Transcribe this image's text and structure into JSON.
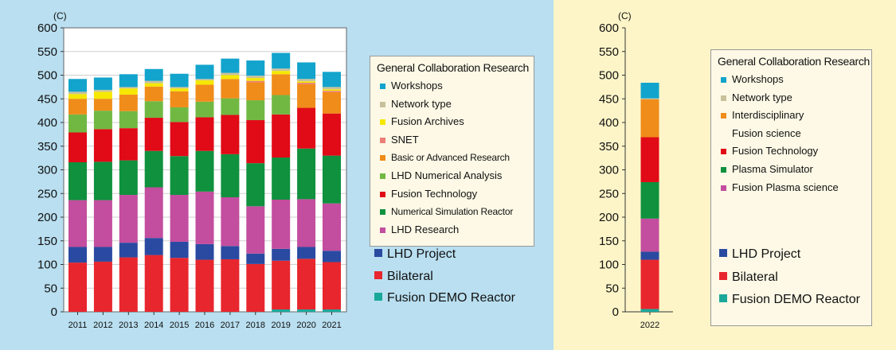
{
  "chart_data": [
    {
      "type": "bar",
      "stacked": true,
      "unit_label": "(C)",
      "ylim": [
        0,
        600
      ],
      "yticks": [
        0,
        50,
        100,
        150,
        200,
        250,
        300,
        350,
        400,
        450,
        500,
        550,
        600
      ],
      "grid": true,
      "categories": [
        "2011",
        "2012",
        "2013",
        "2014",
        "2015",
        "2016",
        "2017",
        "2018",
        "2019",
        "2020",
        "2021"
      ],
      "legend_title": "General Collaboration Research",
      "series": [
        {
          "name": "Fusion DEMO Reactor",
          "color": "#1aa89a",
          "values": [
            0,
            0,
            0,
            0,
            0,
            0,
            0,
            0,
            5,
            5,
            5
          ]
        },
        {
          "name": "Bilateral",
          "color": "#e8262d",
          "values": [
            104,
            106,
            115,
            120,
            114,
            110,
            111,
            101,
            103,
            107,
            100
          ]
        },
        {
          "name": "LHD Project",
          "color": "#2a4aa1",
          "values": [
            33,
            31,
            31,
            36,
            34,
            33,
            28,
            22,
            25,
            25,
            24
          ]
        },
        {
          "name": "LHD Research",
          "color": "#c34d9e",
          "values": [
            99,
            99,
            101,
            107,
            99,
            111,
            103,
            100,
            104,
            101,
            100
          ]
        },
        {
          "name": "Numerical Simulation Reactor",
          "color": "#0f913e",
          "values": [
            80,
            81,
            73,
            77,
            82,
            86,
            91,
            91,
            89,
            107,
            101
          ]
        },
        {
          "name": "Fusion Technology",
          "color": "#e10a17",
          "values": [
            63,
            69,
            68,
            70,
            72,
            71,
            83,
            91,
            91,
            86,
            89
          ]
        },
        {
          "name": "LHD Numerical Analysis",
          "color": "#71b843",
          "values": [
            38,
            39,
            36,
            35,
            31,
            33,
            35,
            42,
            41,
            0,
            0
          ]
        },
        {
          "name": "Basic or Advanced Research",
          "color": "#f08c1a",
          "values": [
            33,
            25,
            35,
            31,
            34,
            36,
            41,
            38,
            44,
            50,
            45
          ]
        },
        {
          "name": "SNET",
          "color": "#ea7f78",
          "values": [
            0,
            0,
            0,
            0,
            0,
            0,
            0,
            3,
            0,
            3,
            3
          ]
        },
        {
          "name": "Fusion Archives",
          "color": "#f6e800",
          "values": [
            10,
            15,
            13,
            7,
            6,
            9,
            8,
            6,
            7,
            3,
            3
          ]
        },
        {
          "name": "Network type",
          "color": "#c8c19b",
          "values": [
            5,
            4,
            3,
            5,
            3,
            3,
            5,
            5,
            5,
            5,
            5
          ]
        },
        {
          "name": "Workshops",
          "color": "#12a4cc",
          "values": [
            27,
            26,
            27,
            25,
            28,
            30,
            30,
            32,
            33,
            35,
            32
          ]
        }
      ],
      "legend_inner": [
        "Workshops",
        "Network type",
        "Fusion Archives",
        "SNET",
        "Basic or Advanced Research",
        "LHD Numerical Analysis",
        "Fusion Technology",
        "Numerical Simulation Reactor",
        "LHD Research"
      ],
      "legend_outer": [
        "LHD Project",
        "Bilateral",
        "Fusion DEMO Reactor"
      ]
    },
    {
      "type": "bar",
      "stacked": true,
      "unit_label": "(C)",
      "ylim": [
        0,
        600
      ],
      "yticks": [
        0,
        50,
        100,
        150,
        200,
        250,
        300,
        350,
        400,
        450,
        500,
        550,
        600
      ],
      "grid": false,
      "categories": [
        "2022"
      ],
      "legend_title": "General Collaboration Research",
      "series": [
        {
          "name": "Fusion DEMO Reactor",
          "color": "#1aa89a",
          "values": [
            6
          ]
        },
        {
          "name": "Bilateral",
          "color": "#e8262d",
          "values": [
            104
          ]
        },
        {
          "name": "LHD Project",
          "color": "#2a4aa1",
          "values": [
            17
          ]
        },
        {
          "name": "Fusion Plasma science",
          "color": "#c34d9e",
          "values": [
            70
          ]
        },
        {
          "name": "Plasma Simulator",
          "color": "#0f913e",
          "values": [
            77
          ]
        },
        {
          "name": "Fusion Technology",
          "color": "#e10a17",
          "values": [
            95
          ]
        },
        {
          "name": "Interdisciplinary Fusion science",
          "color": "#f08c1a",
          "values": [
            80
          ]
        },
        {
          "name": "Network type",
          "color": "#c8c19b",
          "values": [
            2
          ]
        },
        {
          "name": "Workshops",
          "color": "#12a4cc",
          "values": [
            33
          ]
        }
      ],
      "legend_inner": [
        "Workshops",
        "Network type",
        "Interdisciplinary Fusion science",
        "Fusion Technology",
        "Plasma Simulator",
        "Fusion Plasma science"
      ],
      "legend_outer": [
        "LHD Project",
        "Bilateral",
        "Fusion DEMO Reactor"
      ]
    }
  ],
  "legend_left": {
    "title": "General Collaboration Research",
    "items": [
      {
        "label": "Workshops",
        "color": "#12a4cc"
      },
      {
        "label": "Network type",
        "color": "#c8c19b"
      },
      {
        "label": "Fusion Archives",
        "color": "#f6e800"
      },
      {
        "label": "SNET",
        "color": "#ea7f78"
      },
      {
        "label": "Basic or Advanced Research",
        "color": "#f08c1a"
      },
      {
        "label": "LHD Numerical Analysis",
        "color": "#71b843"
      },
      {
        "label": "Fusion Technology",
        "color": "#e10a17"
      },
      {
        "label": "Numerical Simulation Reactor",
        "color": "#0f913e"
      },
      {
        "label": "LHD Research",
        "color": "#c34d9e"
      }
    ],
    "outer": [
      {
        "label": "LHD Project",
        "color": "#2a4aa1"
      },
      {
        "label": "Bilateral",
        "color": "#e8262d"
      },
      {
        "label": "Fusion DEMO Reactor",
        "color": "#1aa89a"
      }
    ]
  },
  "legend_right": {
    "title": "General Collaboration Research",
    "items": [
      {
        "label": "Workshops",
        "color": "#12a4cc"
      },
      {
        "label": "Network type",
        "color": "#c8c19b"
      },
      {
        "label": "Interdisciplinary",
        "color": "#f08c1a"
      },
      {
        "label": "Fusion science",
        "color": ""
      },
      {
        "label": "Fusion Technology",
        "color": "#e10a17"
      },
      {
        "label": "Plasma Simulator",
        "color": "#0f913e"
      },
      {
        "label": "Fusion Plasma science",
        "color": "#c34d9e"
      }
    ],
    "outer": [
      {
        "label": "LHD Project",
        "color": "#2a4aa1"
      },
      {
        "label": "Bilateral",
        "color": "#e8262d"
      },
      {
        "label": "Fusion DEMO Reactor",
        "color": "#1aa89a"
      }
    ]
  }
}
